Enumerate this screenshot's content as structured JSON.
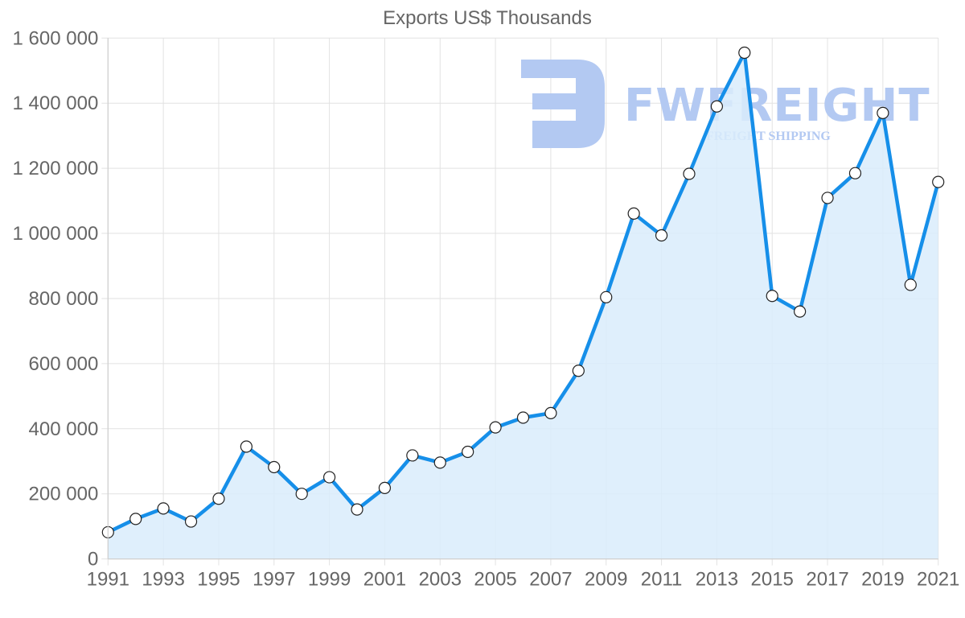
{
  "chart_data": {
    "type": "line",
    "title": "Exports US$ Thousands",
    "xlabel": "",
    "ylabel": "",
    "x": [
      1991,
      1992,
      1993,
      1994,
      1995,
      1996,
      1997,
      1998,
      1999,
      2000,
      2001,
      2002,
      2003,
      2004,
      2005,
      2006,
      2007,
      2008,
      2009,
      2010,
      2011,
      2012,
      2013,
      2014,
      2015,
      2016,
      2017,
      2018,
      2019,
      2020,
      2021
    ],
    "series": [
      {
        "name": "Exports US$ Thousands",
        "values": [
          82000,
          123000,
          155000,
          115000,
          185000,
          345000,
          282000,
          200000,
          251000,
          152000,
          218000,
          318000,
          296000,
          329000,
          404000,
          434000,
          448000,
          578000,
          804000,
          1061000,
          994000,
          1183000,
          1390000,
          1555000,
          808000,
          760000,
          1109000,
          1185000,
          1370000,
          842000,
          1158000
        ],
        "color": "#168fe9",
        "fill": "#d9ecfc"
      }
    ],
    "ylim": [
      0,
      1600000
    ],
    "yticks": [
      "0",
      "200 000",
      "400 000",
      "600 000",
      "800 000",
      "1 000 000",
      "1 200 000",
      "1 400 000",
      "1 600 000"
    ],
    "xticks": [
      "1991",
      "1993",
      "1995",
      "1997",
      "1999",
      "2001",
      "2003",
      "2005",
      "2007",
      "2009",
      "2011",
      "2013",
      "2015",
      "2017",
      "2019",
      "2021"
    ],
    "grid": true,
    "legend": "none",
    "area_fill": true
  },
  "watermark": {
    "brand": "FWFREIGHT",
    "tagline": "FREIGHT SHIPPING",
    "color": "#b3c9f2"
  }
}
